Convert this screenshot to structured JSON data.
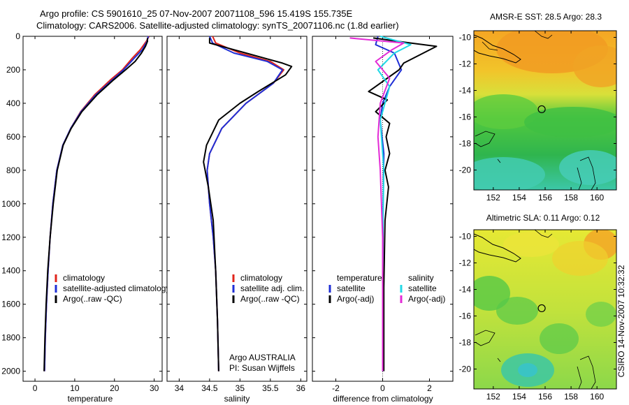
{
  "header": {
    "line1": "Argo profile: CS 5901610_25 07-Nov-2007 20071108_596 15.419S 155.735E",
    "line2": "Climatology: CARS2006. Satellite-adjusted climatology: synTS_20071106.nc (1.8d earlier)"
  },
  "side_label": "CSIRO 14-Nov-2007 10:32:32",
  "colors": {
    "climatology": "#e0241b",
    "satellite": "#1f2fd6",
    "argo": "#000000",
    "sal_satellite": "#22d8e6",
    "sal_argo": "#e32bd6"
  },
  "chart_data": [
    {
      "type": "line",
      "xlabel": "temperature",
      "xlim": [
        -3,
        32
      ],
      "ylim": [
        2060,
        0
      ],
      "xticks": [
        0,
        10,
        20,
        30
      ],
      "yticks": [
        0,
        200,
        400,
        600,
        800,
        1000,
        1200,
        1400,
        1600,
        1800,
        2000
      ],
      "legend": [
        "climatology",
        "satellite-adjusted climatology",
        "Argo(..raw -QC)"
      ],
      "series": [
        {
          "name": "climatology",
          "color": "#e0241b",
          "x": [
            28.7,
            28.0,
            26.5,
            24.5,
            22.0,
            19.0,
            15.0,
            11.5,
            9.0,
            7.0,
            5.5,
            4.5,
            3.8,
            3.3,
            2.9,
            2.6,
            2.4
          ],
          "y": [
            0,
            30,
            80,
            130,
            200,
            260,
            350,
            450,
            550,
            650,
            800,
            1000,
            1200,
            1400,
            1600,
            1800,
            2000
          ]
        },
        {
          "name": "satellite-adjusted climatology",
          "color": "#1f2fd6",
          "x": [
            28.5,
            28.2,
            27.0,
            25.0,
            22.3,
            19.5,
            15.3,
            11.6,
            9.0,
            7.0,
            5.5,
            4.5,
            3.8,
            3.3,
            2.9,
            2.6,
            2.4
          ],
          "y": [
            0,
            30,
            80,
            130,
            200,
            260,
            350,
            450,
            550,
            650,
            800,
            1000,
            1200,
            1400,
            1600,
            1800,
            2000
          ]
        },
        {
          "name": "Argo(..raw -QC)",
          "color": "#000000",
          "x": [
            28.3,
            28.3,
            27.8,
            26.8,
            25.2,
            22.8,
            19.8,
            15.6,
            11.8,
            9.1,
            7.1,
            5.6,
            4.6,
            3.8,
            3.2,
            2.8,
            2.5,
            2.3
          ],
          "y": [
            10,
            30,
            60,
            100,
            150,
            200,
            260,
            350,
            450,
            550,
            650,
            800,
            1000,
            1200,
            1400,
            1600,
            1800,
            2000
          ]
        }
      ]
    },
    {
      "type": "line",
      "xlabel": "salinity",
      "xlim": [
        33.8,
        36.1
      ],
      "ylim": [
        2060,
        0
      ],
      "xticks": [
        34,
        34.5,
        35,
        35.5,
        36
      ],
      "legend": [
        "climatology",
        "satellite adj. clim.",
        "Argo(..raw -QC)"
      ],
      "annotation": [
        "Argo AUSTRALIA",
        "PI: Susan Wijffels"
      ],
      "series": [
        {
          "name": "climatology",
          "color": "#e0241b",
          "x": [
            34.55,
            34.6,
            35.0,
            35.5,
            35.72,
            35.55,
            35.1,
            34.7,
            34.5,
            34.46,
            34.5,
            34.56,
            34.6,
            34.63,
            34.65
          ],
          "y": [
            0,
            40,
            100,
            150,
            200,
            280,
            400,
            550,
            700,
            800,
            1000,
            1200,
            1400,
            1700,
            2000
          ]
        },
        {
          "name": "satellite adj. clim.",
          "color": "#1f2fd6",
          "x": [
            34.5,
            34.55,
            34.9,
            35.45,
            35.7,
            35.55,
            35.1,
            34.7,
            34.5,
            34.46,
            34.5,
            34.56,
            34.6,
            34.63,
            34.65
          ],
          "y": [
            0,
            40,
            100,
            150,
            200,
            280,
            400,
            550,
            700,
            800,
            1000,
            1200,
            1400,
            1700,
            2000
          ]
        },
        {
          "name": "Argo(..raw -QC)",
          "color": "#000000",
          "x": [
            34.5,
            34.5,
            34.8,
            35.1,
            35.4,
            35.7,
            35.85,
            35.75,
            35.3,
            35.0,
            34.65,
            34.45,
            34.4,
            34.48,
            34.56,
            34.6,
            34.63,
            34.65
          ],
          "y": [
            10,
            40,
            70,
            100,
            130,
            160,
            180,
            230,
            330,
            400,
            500,
            650,
            750,
            900,
            1100,
            1400,
            1700,
            2000
          ]
        }
      ]
    },
    {
      "type": "line",
      "xlabel": "difference from climatology",
      "xlim": [
        -3.0,
        3.0
      ],
      "ylim": [
        2060,
        0
      ],
      "xticks": [
        -2,
        0,
        2
      ],
      "legend": [
        "temperature",
        "satellite",
        "Argo(-adj)",
        "salinity",
        "satellite",
        "Argo(-adj)"
      ],
      "series": [
        {
          "name": "temperature satellite",
          "color": "#1f2fd6",
          "x": [
            -0.2,
            -0.3,
            0.5,
            0.8,
            0.3,
            0.0,
            -0.1,
            0.05,
            0.02,
            0.0,
            0.0
          ],
          "y": [
            0,
            50,
            100,
            200,
            300,
            400,
            500,
            700,
            1000,
            1500,
            2000
          ]
        },
        {
          "name": "temperature Argo(-adj)",
          "color": "#000000",
          "x": [
            -0.4,
            1.2,
            2.3,
            1.6,
            0.9,
            0.7,
            -0.6,
            0.2,
            -0.3,
            0.3,
            0.15,
            0.3,
            0.1,
            0.25,
            0.1,
            0.05,
            0.05
          ],
          "y": [
            10,
            40,
            60,
            110,
            160,
            200,
            330,
            380,
            450,
            520,
            600,
            700,
            800,
            900,
            1100,
            1500,
            2000
          ]
        },
        {
          "name": "salinity satellite",
          "color": "#22d8e6",
          "x": [
            -0.1,
            1.2,
            0.5,
            -0.2,
            0.3,
            -0.1,
            0.05,
            0.0,
            0.0
          ],
          "y": [
            0,
            50,
            100,
            200,
            300,
            500,
            800,
            1200,
            2000
          ]
        },
        {
          "name": "salinity Argo(-adj)",
          "color": "#e32bd6",
          "x": [
            -1.4,
            0.9,
            0.4,
            -0.3,
            0.3,
            -0.1,
            -0.2,
            -0.1,
            0.0,
            0.0
          ],
          "y": [
            10,
            40,
            80,
            150,
            250,
            400,
            600,
            800,
            1200,
            2000
          ]
        }
      ]
    },
    {
      "type": "heatmap",
      "title": "AMSR-E SST: 28.5 Argo: 28.3",
      "xlim": [
        150.5,
        161.5
      ],
      "ylim": [
        -21.5,
        -9.5
      ],
      "xticks": [
        152,
        154,
        156,
        158,
        160
      ],
      "yticks": [
        -10,
        -12,
        -14,
        -16,
        -18,
        -20
      ],
      "marker": {
        "lon": 155.735,
        "lat": -15.419
      }
    },
    {
      "type": "heatmap",
      "title": "Altimetric SLA: 0.11 Argo: 0.12",
      "xlim": [
        150.5,
        161.5
      ],
      "ylim": [
        -21.5,
        -9.5
      ],
      "xticks": [
        152,
        154,
        156,
        158,
        160
      ],
      "yticks": [
        -10,
        -12,
        -14,
        -16,
        -18,
        -20
      ],
      "marker": {
        "lon": 155.735,
        "lat": -15.419
      }
    }
  ]
}
